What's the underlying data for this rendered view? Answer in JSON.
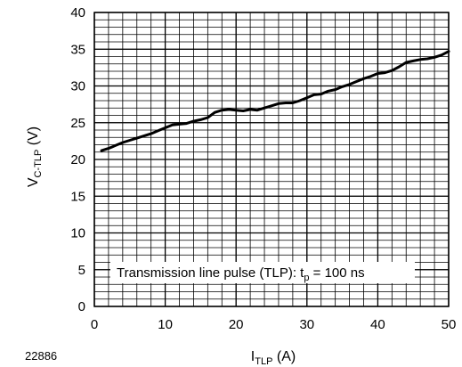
{
  "figure_id": "22886",
  "chart_data": {
    "type": "line",
    "xlabel": {
      "main": "I",
      "sub": "TLP",
      "unit": " (A)"
    },
    "ylabel": {
      "main": "V",
      "sub": "C-TLP",
      "unit": " (V)"
    },
    "xlim": [
      0,
      50
    ],
    "ylim": [
      0,
      40
    ],
    "x_ticks": [
      0,
      10,
      20,
      30,
      40,
      50
    ],
    "y_ticks": [
      0,
      5,
      10,
      15,
      20,
      25,
      30,
      35,
      40
    ],
    "x_minor_step": 2,
    "y_minor_step": 1,
    "grid": true,
    "annotation": {
      "main": "Transmission line pulse (TLP):  t",
      "sub": "p",
      "rest": " = 100 ns"
    },
    "series": [
      {
        "color": "#000000",
        "x": [
          1,
          2,
          3,
          4,
          5,
          6,
          7,
          8,
          9,
          10,
          11,
          12,
          13,
          14,
          15,
          16,
          17,
          18,
          19,
          20,
          21,
          22,
          23,
          24,
          25,
          26,
          27,
          28,
          29,
          30,
          31,
          32,
          33,
          34,
          35,
          36,
          37,
          38,
          39,
          40,
          41,
          42,
          43,
          44,
          45,
          46,
          47,
          48,
          49,
          50
        ],
        "y": [
          21.2,
          21.5,
          21.9,
          22.3,
          22.6,
          22.9,
          23.2,
          23.5,
          23.9,
          24.3,
          24.7,
          24.8,
          24.9,
          25.2,
          25.4,
          25.7,
          26.4,
          26.7,
          26.8,
          26.7,
          26.6,
          26.8,
          26.7,
          27.0,
          27.3,
          27.6,
          27.7,
          27.7,
          28.0,
          28.4,
          28.8,
          28.9,
          29.3,
          29.5,
          29.9,
          30.2,
          30.6,
          31.0,
          31.3,
          31.7,
          31.8,
          32.1,
          32.6,
          33.2,
          33.4,
          33.6,
          33.7,
          33.9,
          34.2,
          34.7
        ]
      }
    ]
  }
}
